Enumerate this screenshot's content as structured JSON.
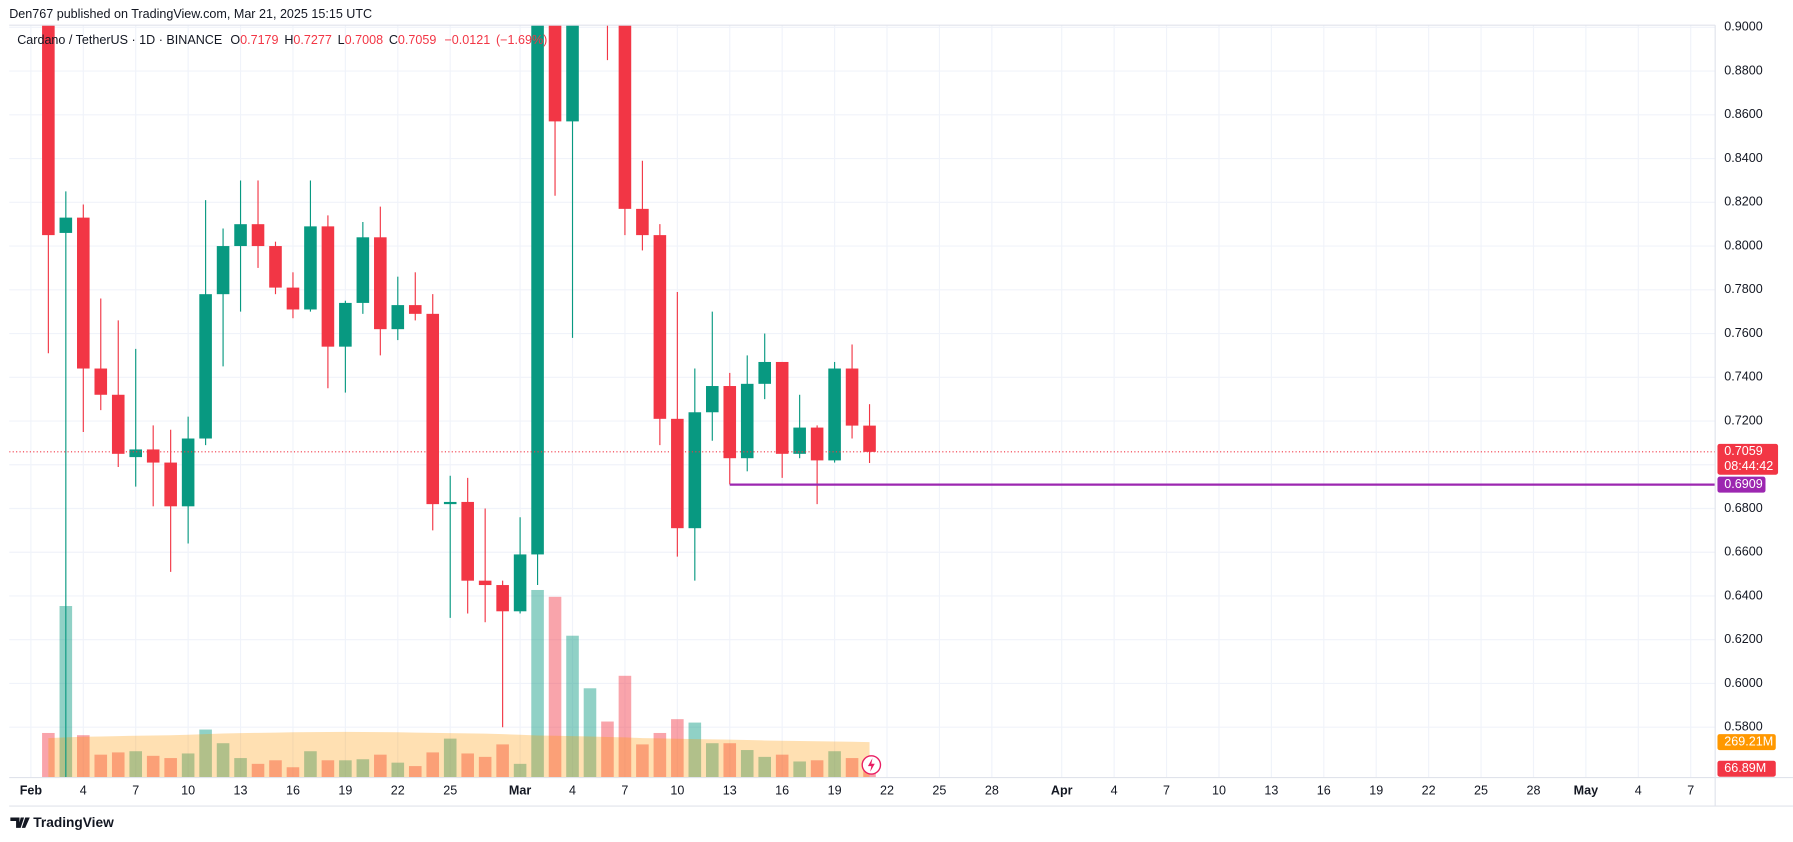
{
  "chart_data": {
    "type": "candlestick",
    "attribution": "Den767 published on TradingView.com, Mar 21, 2025 15:15 UTC",
    "title": "Cardano / TetherUS · 1D · BINANCE",
    "ohlc_letters": [
      "O",
      "H",
      "L",
      "C"
    ],
    "change": {
      "value": -0.0121,
      "label": "−0.0121"
    },
    "change_pct": {
      "value": -1.69,
      "label": "(−1.69%)"
    },
    "countdown": "08:44:42",
    "footer": "TradingView",
    "up_color": "#089981",
    "down_color": "#f23645",
    "volume_ma_color": "#ff9800",
    "x": [
      1,
      2,
      3,
      4,
      5,
      6,
      7,
      8,
      9,
      10,
      11,
      12,
      13,
      14,
      15,
      16,
      17,
      18,
      19,
      20,
      21,
      22,
      23,
      24,
      25,
      26,
      27,
      28,
      29,
      30,
      31,
      32,
      33,
      34,
      35,
      36,
      37,
      38,
      39,
      40,
      41,
      42,
      43,
      44,
      45,
      46,
      47,
      48
    ],
    "open": [
      0.92,
      0.806,
      0.813,
      0.744,
      0.732,
      0.7035,
      0.707,
      0.701,
      0.681,
      0.712,
      0.778,
      0.8,
      0.81,
      0.8,
      0.781,
      0.771,
      0.809,
      0.754,
      0.774,
      0.804,
      0.762,
      0.773,
      0.769,
      0.682,
      0.683,
      0.647,
      0.645,
      0.633,
      0.659,
      1.0,
      0.857,
      0.93,
      0.96,
      0.92,
      0.817,
      0.805,
      0.721,
      0.671,
      0.724,
      0.736,
      0.703,
      0.737,
      0.747,
      0.705,
      0.717,
      0.702,
      0.744,
      0.7179
    ],
    "high": [
      0.94,
      0.825,
      0.819,
      0.776,
      0.766,
      0.753,
      0.718,
      0.716,
      0.722,
      0.821,
      0.808,
      0.83,
      0.83,
      0.802,
      0.788,
      0.83,
      0.814,
      0.775,
      0.811,
      0.818,
      0.786,
      0.788,
      0.778,
      0.695,
      0.694,
      0.68,
      0.647,
      0.676,
      1.17,
      1.1,
      0.98,
      0.98,
      0.98,
      0.95,
      0.839,
      0.81,
      0.779,
      0.744,
      0.77,
      0.742,
      0.75,
      0.76,
      0.747,
      0.732,
      0.718,
      0.747,
      0.755,
      0.7277
    ],
    "low": [
      0.751,
      0.52,
      0.715,
      0.725,
      0.699,
      0.69,
      0.681,
      0.651,
      0.664,
      0.709,
      0.745,
      0.77,
      0.79,
      0.778,
      0.767,
      0.77,
      0.735,
      0.733,
      0.769,
      0.75,
      0.757,
      0.766,
      0.67,
      0.63,
      0.632,
      0.628,
      0.58,
      0.632,
      0.645,
      0.823,
      0.758,
      0.91,
      0.885,
      0.805,
      0.798,
      0.709,
      0.658,
      0.647,
      0.711,
      0.691,
      0.697,
      0.73,
      0.694,
      0.703,
      0.682,
      0.701,
      0.712,
      0.7008
    ],
    "close": [
      0.805,
      0.813,
      0.744,
      0.732,
      0.705,
      0.707,
      0.701,
      0.681,
      0.712,
      0.778,
      0.8,
      0.81,
      0.8,
      0.781,
      0.771,
      0.809,
      0.754,
      0.774,
      0.804,
      0.762,
      0.773,
      0.769,
      0.682,
      0.683,
      0.647,
      0.645,
      0.633,
      0.659,
      1.0,
      0.857,
      0.93,
      0.96,
      0.92,
      0.817,
      0.805,
      0.721,
      0.671,
      0.724,
      0.736,
      0.703,
      0.737,
      0.747,
      0.705,
      0.717,
      0.702,
      0.744,
      0.7179,
      0.7059
    ],
    "volume": [
      339,
      1305,
      322,
      174,
      191,
      200,
      165,
      148,
      183,
      365,
      261,
      148,
      104,
      131,
      78,
      200,
      131,
      131,
      139,
      174,
      113,
      87,
      191,
      296,
      183,
      157,
      252,
      104,
      1427,
      1375,
      1079,
      679,
      426,
      774,
      252,
      339,
      444,
      418,
      261,
      261,
      209,
      157,
      174,
      122,
      131,
      200,
      148,
      66.89
    ],
    "volume_ma": [
      300,
      305,
      310,
      312,
      315,
      318,
      320,
      322,
      325,
      330,
      335,
      338,
      340,
      342,
      344,
      345,
      346,
      347,
      346,
      345,
      344,
      342,
      340,
      338,
      336,
      334,
      330,
      325,
      320,
      318,
      315,
      312,
      308,
      305,
      300,
      298,
      295,
      292,
      290,
      288,
      285,
      282,
      280,
      278,
      276,
      274,
      272,
      269.21
    ],
    "volume_ylim": [
      0,
      5725
    ],
    "volume_ticks": [
      {
        "value": 269.21,
        "label": "269.21M"
      },
      {
        "value": 66.89,
        "label": "66.89M"
      }
    ],
    "horizontal_line": {
      "value": 0.6909,
      "label": "0.6909",
      "start_x": 40,
      "color": "#9c27b0"
    },
    "xlim": [
      -1.24,
      96.4
    ],
    "xticks": [
      {
        "value": 0,
        "label": "Feb"
      },
      {
        "value": 3,
        "label": "4"
      },
      {
        "value": 6,
        "label": "7"
      },
      {
        "value": 9,
        "label": "10"
      },
      {
        "value": 12,
        "label": "13"
      },
      {
        "value": 15,
        "label": "16"
      },
      {
        "value": 18,
        "label": "19"
      },
      {
        "value": 21,
        "label": "22"
      },
      {
        "value": 24,
        "label": "25"
      },
      {
        "value": 28,
        "label": "Mar"
      },
      {
        "value": 31,
        "label": "4"
      },
      {
        "value": 34,
        "label": "7"
      },
      {
        "value": 37,
        "label": "10"
      },
      {
        "value": 40,
        "label": "13"
      },
      {
        "value": 43,
        "label": "16"
      },
      {
        "value": 46,
        "label": "19"
      },
      {
        "value": 49,
        "label": "22"
      },
      {
        "value": 52,
        "label": "25"
      },
      {
        "value": 55,
        "label": "28"
      },
      {
        "value": 59,
        "label": "Apr"
      },
      {
        "value": 62,
        "label": "4"
      },
      {
        "value": 65,
        "label": "7"
      },
      {
        "value": 68,
        "label": "10"
      },
      {
        "value": 71,
        "label": "13"
      },
      {
        "value": 74,
        "label": "16"
      },
      {
        "value": 77,
        "label": "19"
      },
      {
        "value": 80,
        "label": "22"
      },
      {
        "value": 83,
        "label": "25"
      },
      {
        "value": 86,
        "label": "28"
      },
      {
        "value": 89,
        "label": "May"
      },
      {
        "value": 92,
        "label": "4"
      },
      {
        "value": 95,
        "label": "7"
      }
    ],
    "ylim": [
      0.557,
      0.901
    ],
    "yticks": [
      {
        "value": 0.58,
        "label": "0.5800"
      },
      {
        "value": 0.6,
        "label": "0.6000"
      },
      {
        "value": 0.62,
        "label": "0.6200"
      },
      {
        "value": 0.64,
        "label": "0.6400"
      },
      {
        "value": 0.66,
        "label": "0.6600"
      },
      {
        "value": 0.68,
        "label": "0.6800"
      },
      {
        "value": 0.7,
        "label": "0.7000"
      },
      {
        "value": 0.72,
        "label": "0.7200"
      },
      {
        "value": 0.74,
        "label": "0.7400"
      },
      {
        "value": 0.76,
        "label": "0.7600"
      },
      {
        "value": 0.78,
        "label": "0.7800"
      },
      {
        "value": 0.8,
        "label": "0.8000"
      },
      {
        "value": 0.82,
        "label": "0.8200"
      },
      {
        "value": 0.84,
        "label": "0.8400"
      },
      {
        "value": 0.86,
        "label": "0.8600"
      },
      {
        "value": 0.88,
        "label": "0.8800"
      },
      {
        "value": 0.9,
        "label": "0.9000"
      }
    ],
    "grid": true
  }
}
